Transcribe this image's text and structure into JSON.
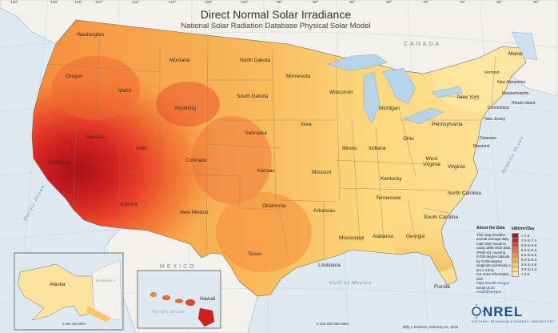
{
  "title": "Direct Normal Solar Irradiance",
  "subtitle": "National Solar Radiation Database Physical Solar Model",
  "countries": {
    "canada": "CANADA",
    "mexico": "MEXICO"
  },
  "oceans": {
    "pacific": "Pacific Ocean",
    "atlantic": "Atlantic Ocean",
    "gulf": "Gulf of Mexico",
    "pacific_hawaii": "Pacific Ocean"
  },
  "states": [
    "Washington",
    "Oregon",
    "California",
    "Nevada",
    "Idaho",
    "Montana",
    "Wyoming",
    "Utah",
    "Arizona",
    "New Mexico",
    "Colorado",
    "North Dakota",
    "South Dakota",
    "Nebraska",
    "Kansas",
    "Oklahoma",
    "Texas",
    "Minnesota",
    "Iowa",
    "Missouri",
    "Arkansas",
    "Louisiana",
    "Wisconsin",
    "Illinois",
    "Michigan",
    "Indiana",
    "Ohio",
    "Kentucky",
    "Tennessee",
    "Mississippi",
    "Alabama",
    "Georgia",
    "Florida",
    "South Carolina",
    "North Carolina",
    "Virginia",
    "West Virginia",
    "Pennsylvania",
    "New York",
    "Vermont",
    "New Hampshire",
    "Maine",
    "Massachusetts",
    "Connecticut",
    "Rhode Island",
    "New Jersey",
    "Delaware",
    "Maryland",
    "Alaska",
    "Hawaii"
  ],
  "about": {
    "heading": "About the Data",
    "text": "This map provides annual average daily total solar resource using 1998-2016 data (PSM v3) covering 0.038-degree latitude by 0.038-degree longitude (nominally 4 km x 4 km).",
    "more": "For more information, visit:",
    "url": "https://nsrdb.nrel.gov",
    "email_label": "Email us at:",
    "email": "nsrdb@nrel.gov"
  },
  "legend": {
    "title": "kWh/m²/Day",
    "bins": [
      {
        "label": "> 7.5",
        "color": "#a8121b"
      },
      {
        "label": "7.0 to 7.4",
        "color": "#cf1f1f"
      },
      {
        "label": "6.5 to 6.9",
        "color": "#e8412a"
      },
      {
        "label": "6.0 to 6.4",
        "color": "#f06a32"
      },
      {
        "label": "5.5 to 5.9",
        "color": "#f58d3d"
      },
      {
        "label": "5.0 to 5.4",
        "color": "#f8ab4e"
      },
      {
        "label": "4.5 to 4.9",
        "color": "#fbc563"
      },
      {
        "label": "4.0 to 4.4",
        "color": "#fdd97f"
      },
      {
        "label": "< 4.0",
        "color": "#fde9a6"
      }
    ]
  },
  "logo": {
    "text": "NREL",
    "sub": "NATIONAL RENEWABLE ENERGY LABORATORY"
  },
  "credit": "Billy J. Roberts, February 22, 2018",
  "scale": {
    "main": "0   100  200  300 Miles",
    "alaska": "0   200  400 Miles"
  },
  "longitudes": [
    "-140°",
    "-135°",
    "-125°",
    "-120°",
    "-115°",
    "-110°",
    "-105°",
    "-100°",
    "-95°",
    "-90°",
    "-85°",
    "-80°",
    "-75°",
    "-70°",
    "-65°",
    "-60°"
  ],
  "inset_labels": {
    "alaska": "Alaska",
    "hawaii": "Hawaii",
    "canada_small": "CANADA"
  }
}
